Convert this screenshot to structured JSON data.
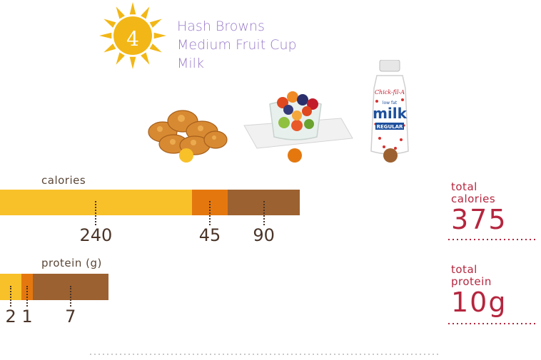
{
  "meal": {
    "number": "4",
    "items": [
      "Hash Browns",
      "Medium Fruit Cup",
      "Milk"
    ]
  },
  "milk_label": {
    "brand": "Chick-fil-A",
    "line1": "low fat",
    "line2": "milk",
    "variant": "REGULAR"
  },
  "colors": {
    "hash_browns": "#f8c12a",
    "fruit_cup": "#e4780f",
    "milk": "#9c6130",
    "accent": "#b5263e",
    "meal_text": "#9a7cc9"
  },
  "chart_data": [
    {
      "type": "bar",
      "orientation": "horizontal-stacked",
      "title": "calories",
      "categories": [
        "Hash Browns",
        "Medium Fruit Cup",
        "Milk"
      ],
      "values": [
        240,
        45,
        90
      ],
      "value_labels": [
        "240",
        "45",
        "90"
      ]
    },
    {
      "type": "bar",
      "orientation": "horizontal-stacked",
      "title": "protein (g)",
      "categories": [
        "Hash Browns",
        "Medium Fruit Cup",
        "Milk"
      ],
      "values": [
        2,
        1,
        7
      ],
      "value_labels": [
        "2",
        "1",
        "7"
      ]
    }
  ],
  "totals": {
    "calories_label_1": "total",
    "calories_label_2": "calories",
    "calories_value": "375",
    "protein_label_1": "total",
    "protein_label_2": "protein",
    "protein_value": "10g"
  }
}
